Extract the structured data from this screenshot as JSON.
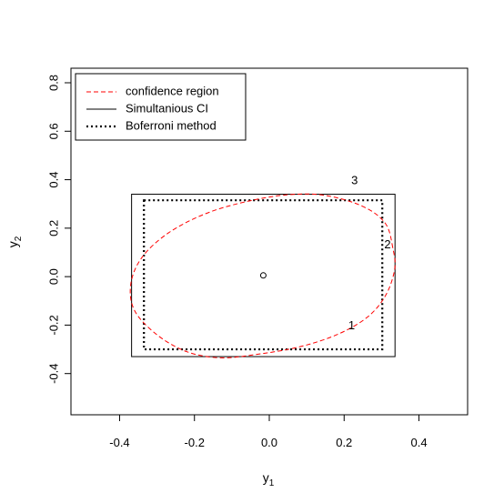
{
  "chart_data": {
    "type": "line",
    "xlabel": "y",
    "xlabel_sub": "1",
    "ylabel": "y",
    "ylabel_sub": "2",
    "xlim": [
      -0.53,
      0.53
    ],
    "ylim": [
      -0.57,
      0.86
    ],
    "xticks": [
      -0.4,
      -0.2,
      0.0,
      0.2,
      0.4
    ],
    "xtick_labels": [
      "-0.4",
      "-0.2",
      "0.0",
      "0.2",
      "0.4"
    ],
    "yticks": [
      -0.4,
      -0.2,
      0.0,
      0.2,
      0.4,
      0.6,
      0.8
    ],
    "ytick_labels": [
      "-0.4",
      "-0.2",
      "0.0",
      "0.2",
      "0.4",
      "0.6",
      "0.8"
    ],
    "grid": false,
    "legend_position": "top-left",
    "center": {
      "x": -0.016,
      "y": 0.005
    },
    "ellipse": {
      "name": "confidence region",
      "color": "#ff0000",
      "style": "dashed",
      "points": [
        [
          0.33,
          0.12
        ],
        [
          0.31,
          0.22
        ],
        [
          0.25,
          0.29
        ],
        [
          0.15,
          0.335
        ],
        [
          0.05,
          0.338
        ],
        [
          -0.06,
          0.31
        ],
        [
          -0.17,
          0.26
        ],
        [
          -0.27,
          0.18
        ],
        [
          -0.34,
          0.08
        ],
        [
          -0.37,
          -0.03
        ],
        [
          -0.36,
          -0.14
        ],
        [
          -0.3,
          -0.24
        ],
        [
          -0.22,
          -0.31
        ],
        [
          -0.13,
          -0.335
        ],
        [
          -0.03,
          -0.32
        ],
        [
          0.08,
          -0.29
        ],
        [
          0.18,
          -0.24
        ],
        [
          0.26,
          -0.17
        ],
        [
          0.31,
          -0.08
        ],
        [
          0.335,
          0.03
        ]
      ]
    },
    "simultaneous_ci": {
      "name": "Simultanious CI",
      "color": "#000000",
      "style": "solid",
      "x_range": [
        -0.368,
        0.336
      ],
      "y_range": [
        -0.33,
        0.34
      ]
    },
    "bonferroni": {
      "name": "Boferroni method",
      "color": "#000000",
      "style": "dotted",
      "x_range": [
        -0.335,
        0.302
      ],
      "y_range": [
        -0.3,
        0.315
      ]
    },
    "legend": [
      {
        "label": "confidence region",
        "style": "dashed",
        "color": "#ff0000"
      },
      {
        "label": "Simultanious CI",
        "style": "solid",
        "color": "#000000"
      },
      {
        "label": "Boferroni method",
        "style": "dotted",
        "color": "#000000"
      }
    ],
    "annotations": [
      {
        "text": "1",
        "x": 0.22,
        "y": -0.205
      },
      {
        "text": "2",
        "x": 0.316,
        "y": 0.13
      },
      {
        "text": "3",
        "x": 0.228,
        "y": 0.395
      }
    ]
  }
}
